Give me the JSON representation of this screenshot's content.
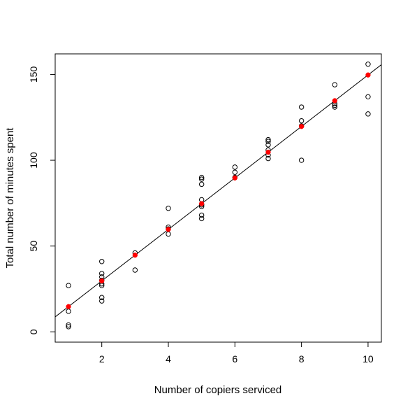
{
  "chart_data": {
    "type": "scatter",
    "title": "",
    "xlabel": "Number of copiers serviced",
    "ylabel": "Total number of minutes spent",
    "xlim": [
      0.6,
      10.4
    ],
    "ylim": [
      -6,
      162
    ],
    "x_ticks": [
      2,
      4,
      6,
      8,
      10
    ],
    "y_ticks": [
      0,
      50,
      100,
      150
    ],
    "x_tick_labels": [
      "2",
      "4",
      "6",
      "8",
      "10"
    ],
    "y_tick_labels": [
      "0",
      "50",
      "100",
      "150"
    ],
    "grid": false,
    "observed": {
      "x": [
        1,
        1,
        1,
        1,
        2,
        2,
        2,
        2,
        2,
        2,
        2,
        2,
        3,
        3,
        4,
        4,
        4,
        4,
        5,
        5,
        5,
        5,
        5,
        5,
        5,
        5,
        5,
        6,
        6,
        6,
        7,
        7,
        7,
        7,
        7,
        7,
        8,
        8,
        8,
        8,
        9,
        9,
        9,
        9,
        10,
        10,
        10
      ],
      "y": [
        27,
        12,
        4,
        3,
        41,
        34,
        32,
        30,
        28,
        27,
        20,
        18,
        46,
        36,
        72,
        61,
        60,
        57,
        90,
        89,
        86,
        77,
        74,
        73,
        68,
        66,
        74,
        96,
        93,
        90,
        112,
        111,
        109,
        106,
        103,
        101,
        131,
        123,
        120,
        100,
        144,
        133,
        132,
        131,
        156,
        137,
        127
      ]
    },
    "fitted": {
      "x": [
        1,
        2,
        3,
        4,
        5,
        6,
        7,
        8,
        9,
        10
      ],
      "y": [
        14.7,
        29.7,
        44.7,
        59.7,
        74.7,
        89.7,
        104.7,
        119.7,
        134.7,
        149.7
      ],
      "color": "#ff0000"
    },
    "regression_line": {
      "intercept": -0.3,
      "slope": 15.0
    }
  }
}
